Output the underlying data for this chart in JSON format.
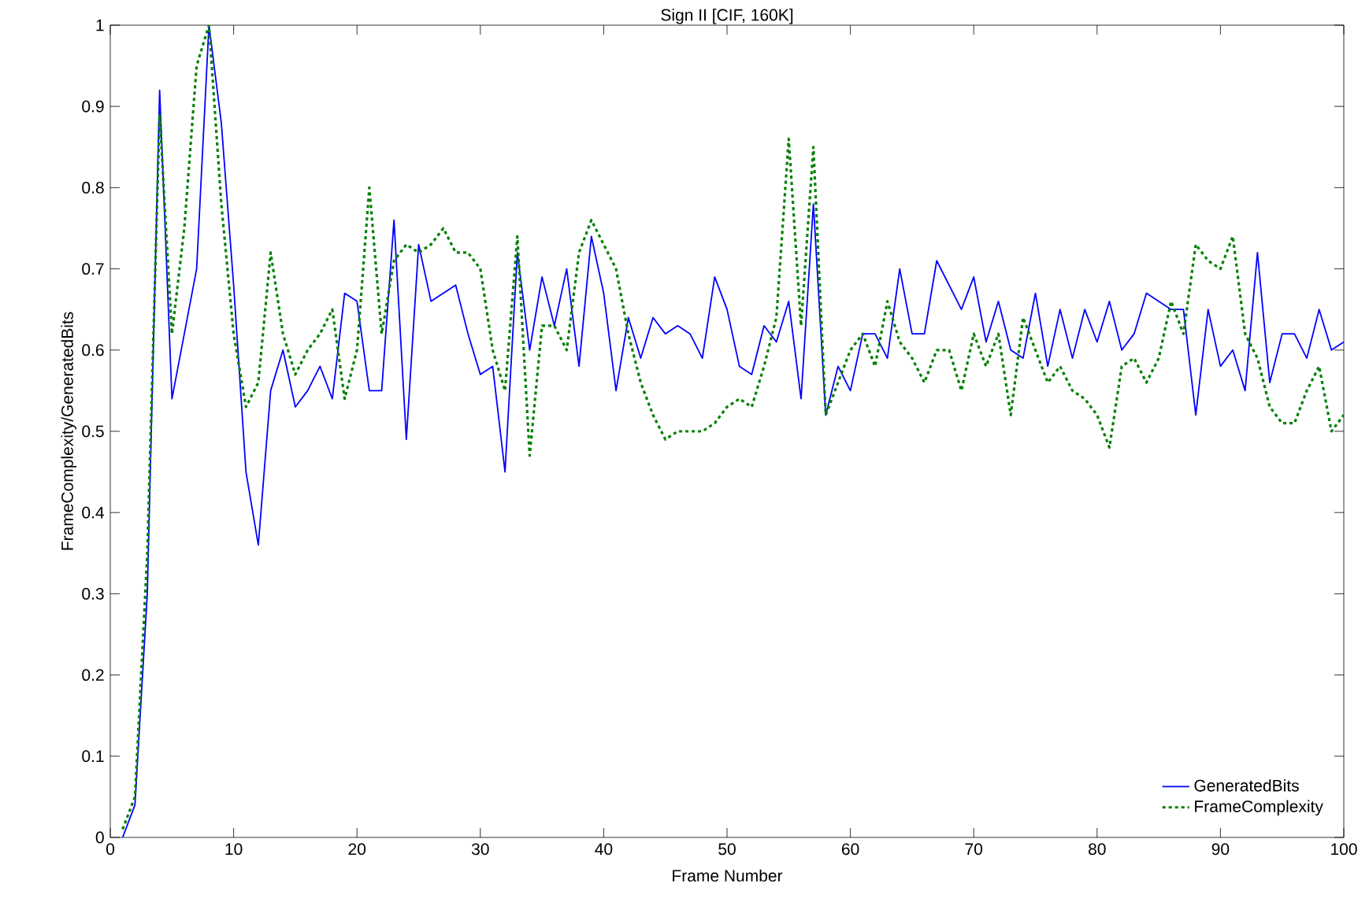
{
  "chart_data": {
    "type": "line",
    "title": "Sign II [CIF, 160K]",
    "xlabel": "Frame Number",
    "ylabel": "FrameComplexity/GeneratedBits",
    "x": [
      1,
      2,
      3,
      4,
      5,
      6,
      7,
      8,
      9,
      10,
      11,
      12,
      13,
      14,
      15,
      16,
      17,
      18,
      19,
      20,
      21,
      22,
      23,
      24,
      25,
      26,
      27,
      28,
      29,
      30,
      31,
      32,
      33,
      34,
      35,
      36,
      37,
      38,
      39,
      40,
      41,
      42,
      43,
      44,
      45,
      46,
      47,
      48,
      49,
      50,
      51,
      52,
      53,
      54,
      55,
      56,
      57,
      58,
      59,
      60,
      61,
      62,
      63,
      64,
      65,
      66,
      67,
      68,
      69,
      70,
      71,
      72,
      73,
      74,
      75,
      76,
      77,
      78,
      79,
      80,
      81,
      82,
      83,
      84,
      85,
      86,
      87,
      88,
      89,
      90,
      91,
      92,
      93,
      94,
      95,
      96,
      97,
      98,
      99,
      100
    ],
    "series": [
      {
        "name": "GeneratedBits",
        "color": "#0000ff",
        "line_style": "solid",
        "values": [
          0.0,
          0.04,
          0.3,
          0.92,
          0.54,
          0.62,
          0.7,
          1.0,
          0.88,
          0.68,
          0.45,
          0.36,
          0.55,
          0.6,
          0.53,
          0.55,
          0.58,
          0.54,
          0.67,
          0.66,
          0.55,
          0.55,
          0.76,
          0.49,
          0.73,
          0.66,
          0.67,
          0.68,
          0.62,
          0.57,
          0.58,
          0.45,
          0.72,
          0.6,
          0.69,
          0.63,
          0.7,
          0.58,
          0.74,
          0.67,
          0.55,
          0.64,
          0.59,
          0.64,
          0.62,
          0.63,
          0.62,
          0.59,
          0.69,
          0.65,
          0.58,
          0.57,
          0.63,
          0.61,
          0.66,
          0.54,
          0.78,
          0.52,
          0.58,
          0.55,
          0.62,
          0.62,
          0.59,
          0.7,
          0.62,
          0.62,
          0.71,
          0.68,
          0.65,
          0.69,
          0.61,
          0.66,
          0.6,
          0.59,
          0.67,
          0.58,
          0.65,
          0.59,
          0.65,
          0.61,
          0.66,
          0.6,
          0.62,
          0.67,
          0.66,
          0.65,
          0.65,
          0.52,
          0.65,
          0.58,
          0.6,
          0.55,
          0.72,
          0.56,
          0.62,
          0.62,
          0.59,
          0.65,
          0.6,
          0.61
        ]
      },
      {
        "name": "FrameComplexity",
        "color": "#008000",
        "line_style": "dotted",
        "values": [
          0.01,
          0.05,
          0.35,
          0.89,
          0.62,
          0.75,
          0.95,
          1.0,
          0.78,
          0.62,
          0.53,
          0.56,
          0.72,
          0.62,
          0.57,
          0.6,
          0.62,
          0.65,
          0.54,
          0.6,
          0.8,
          0.62,
          0.71,
          0.73,
          0.72,
          0.73,
          0.75,
          0.72,
          0.72,
          0.7,
          0.6,
          0.55,
          0.74,
          0.47,
          0.63,
          0.63,
          0.6,
          0.72,
          0.76,
          0.73,
          0.7,
          0.62,
          0.56,
          0.52,
          0.49,
          0.5,
          0.5,
          0.5,
          0.51,
          0.53,
          0.54,
          0.53,
          0.58,
          0.64,
          0.86,
          0.63,
          0.85,
          0.52,
          0.56,
          0.6,
          0.62,
          0.58,
          0.66,
          0.61,
          0.59,
          0.56,
          0.6,
          0.6,
          0.55,
          0.62,
          0.58,
          0.62,
          0.52,
          0.64,
          0.6,
          0.56,
          0.58,
          0.55,
          0.54,
          0.52,
          0.48,
          0.58,
          0.59,
          0.56,
          0.59,
          0.66,
          0.62,
          0.73,
          0.71,
          0.7,
          0.74,
          0.62,
          0.59,
          0.53,
          0.51,
          0.51,
          0.55,
          0.58,
          0.5,
          0.52
        ]
      }
    ],
    "xlim": [
      0,
      100
    ],
    "xticks": [
      0,
      10,
      20,
      30,
      40,
      50,
      60,
      70,
      80,
      90,
      100
    ],
    "ylim": [
      0,
      1
    ],
    "yticks": [
      0,
      0.1,
      0.2,
      0.3,
      0.4,
      0.5,
      0.6,
      0.7,
      0.8,
      0.9,
      1
    ],
    "grid": false,
    "legend": "bottom right",
    "marker": "none"
  }
}
